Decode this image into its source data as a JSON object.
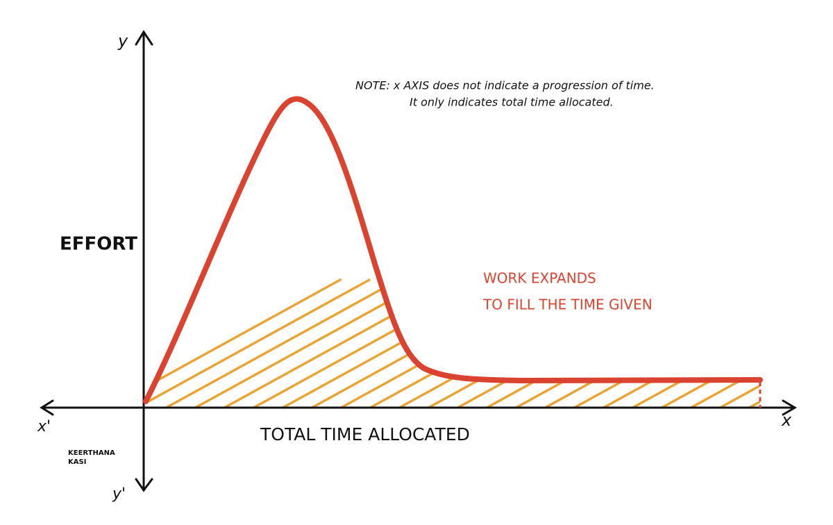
{
  "axes": {
    "y_label": "y",
    "x_label": "x",
    "x_negative_label": "x'",
    "y_negative_label": "y'",
    "y_title": "EFFORT",
    "x_title": "TOTAL TIME ALLOCATED"
  },
  "note": {
    "lines": [
      "NOTE: x AXIS does not indicate a progression of time.",
      "It only indicates total time allocated."
    ]
  },
  "caption": {
    "lines": [
      "WORK EXPANDS",
      "TO FILL THE TIME GIVEN"
    ]
  },
  "signature": {
    "lines": [
      "KEERTHANA",
      "KASI"
    ]
  }
}
